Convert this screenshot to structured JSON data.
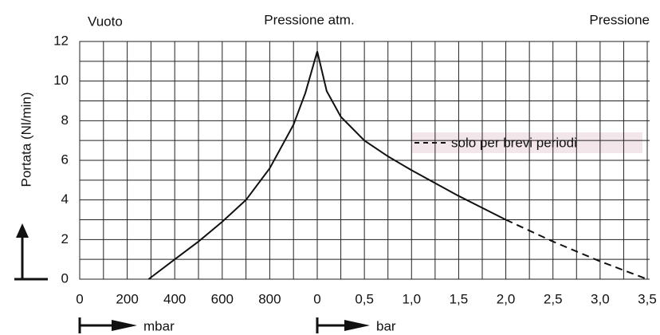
{
  "chart_data": {
    "type": "line",
    "y_label": "Portata (Nl/min)",
    "top_labels": [
      "Vuoto",
      "Pressione atm.",
      "Pressione"
    ],
    "x_unit": "mbar",
    "x2_unit": "bar",
    "annotation": "solo per brevi periodi",
    "xlim": [
      0,
      1000
    ],
    "xticks": [
      0,
      200,
      400,
      600,
      800
    ],
    "xgrid": [
      0,
      100,
      200,
      300,
      400,
      500,
      600,
      700,
      800,
      900
    ],
    "x2lim": [
      0,
      3.5
    ],
    "x2ticks": [
      0,
      {
        "value": 0.5,
        "label": "0,5"
      },
      {
        "value": 1,
        "label": "1,0"
      },
      {
        "value": 1.5,
        "label": "1,5"
      },
      {
        "value": 2,
        "label": "2,0"
      },
      {
        "value": 2.5,
        "label": "2,5"
      },
      {
        "value": 3,
        "label": "3,0"
      },
      {
        "value": 3.5,
        "label": "3,5"
      }
    ],
    "x2grid": [
      0,
      0.25,
      0.5,
      0.75,
      1,
      1.25,
      1.5,
      1.75,
      2,
      2.25,
      2.5,
      2.75,
      3,
      3.25,
      3.5
    ],
    "ylim": [
      0,
      12
    ],
    "yticks": [
      0,
      2,
      4,
      6,
      8,
      10,
      12
    ],
    "ygrid": [
      0,
      1,
      2,
      3,
      4,
      5,
      6,
      7,
      8,
      9,
      10,
      11,
      12
    ],
    "grid": true,
    "series": [
      {
        "color": "#111",
        "axis": "x",
        "dashed": false,
        "x": [
          290,
          400,
          500,
          600,
          700,
          800,
          900,
          950,
          1000
        ],
        "values": [
          0,
          1,
          1.9,
          2.9,
          4,
          5.6,
          7.8,
          9.4,
          11.5
        ]
      },
      {
        "color": "#111",
        "axis": "x2",
        "dashed": false,
        "x": [
          0,
          0.1,
          0.25,
          0.5,
          0.75,
          1,
          1.5,
          2
        ],
        "values": [
          11.5,
          9.5,
          8.2,
          7,
          6.2,
          5.5,
          4.2,
          3
        ]
      },
      {
        "color": "#111",
        "axis": "x2",
        "dashed": true,
        "x": [
          2,
          2.5,
          3,
          3.5
        ],
        "values": [
          3,
          1.9,
          0.9,
          0
        ]
      }
    ]
  }
}
